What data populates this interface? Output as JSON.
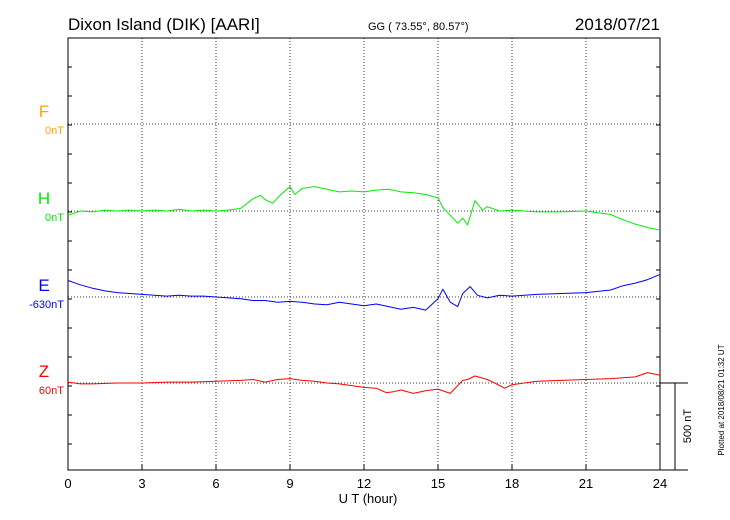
{
  "header": {
    "station": "Dixon Island (DIK)  [AARI]",
    "coords": "GG ( 73.55°,  80.57°)",
    "date": "2018/07/21"
  },
  "plotted_note": "Plotted at 2018/08/21 01:32 UT",
  "scale_label": "500 nT",
  "chart_data": {
    "type": "line",
    "xlabel": "U T (hour)",
    "ylabel": "",
    "xlim": [
      0,
      24
    ],
    "x_ticks": [
      0,
      3,
      6,
      9,
      12,
      15,
      18,
      21,
      24
    ],
    "grid": true,
    "scale_bar_nT": 500,
    "series": [
      {
        "name": "F",
        "offset_label": "0nT",
        "color": "#ffa500",
        "x": [],
        "y": []
      },
      {
        "name": "H",
        "offset_label": "0nT",
        "color": "#00ee00",
        "x": [
          0,
          0.5,
          1,
          1.5,
          2,
          2.5,
          3,
          3.5,
          4,
          4.5,
          5,
          5.5,
          6,
          6.5,
          7,
          7.5,
          7.8,
          8,
          8.3,
          8.6,
          9,
          9.2,
          9.5,
          10,
          10.5,
          11,
          11.5,
          12,
          12.5,
          13,
          13.5,
          14,
          14.5,
          15,
          15.2,
          15.5,
          15.8,
          16,
          16.2,
          16.5,
          16.8,
          17,
          17.5,
          18,
          19,
          20,
          21,
          22,
          22.5,
          23,
          23.5,
          24
        ],
        "y": [
          -25,
          0,
          -5,
          5,
          0,
          5,
          0,
          5,
          0,
          10,
          0,
          5,
          0,
          5,
          15,
          70,
          90,
          65,
          45,
          90,
          140,
          95,
          130,
          140,
          125,
          110,
          115,
          110,
          120,
          125,
          110,
          105,
          95,
          75,
          20,
          -25,
          -70,
          -40,
          -80,
          60,
          5,
          25,
          0,
          5,
          -5,
          -5,
          0,
          -20,
          -50,
          -75,
          -95,
          -110
        ]
      },
      {
        "name": "E",
        "offset_label": "-630nT",
        "color": "#0000ff",
        "x": [
          0,
          0.5,
          1,
          1.5,
          2,
          2.5,
          3,
          3.5,
          4,
          4.5,
          5,
          5.5,
          6,
          6.5,
          7,
          7.5,
          8,
          8.5,
          9,
          9.5,
          10,
          10.5,
          11,
          11.5,
          12,
          12.5,
          13,
          13.5,
          14,
          14.5,
          15,
          15.2,
          15.5,
          15.8,
          16,
          16.3,
          16.6,
          17,
          17.5,
          18,
          19,
          20,
          21,
          22,
          22.5,
          23,
          23.5,
          24
        ],
        "y": [
          95,
          70,
          50,
          35,
          25,
          20,
          15,
          10,
          5,
          10,
          5,
          5,
          0,
          -5,
          -10,
          -20,
          -20,
          -30,
          -25,
          -30,
          -40,
          -45,
          -30,
          -40,
          -50,
          -40,
          -55,
          -70,
          -60,
          -75,
          -10,
          45,
          -30,
          -55,
          20,
          60,
          10,
          -5,
          10,
          5,
          15,
          20,
          25,
          40,
          65,
          80,
          100,
          130
        ]
      },
      {
        "name": "Z",
        "offset_label": "60nT",
        "color": "#ff0000",
        "x": [
          0,
          0.5,
          1,
          2,
          3,
          4,
          5,
          6,
          7,
          7.5,
          8,
          8.5,
          9,
          9.5,
          10,
          10.5,
          11,
          11.5,
          12,
          12.5,
          12.9,
          13.2,
          13.5,
          14,
          14.5,
          15,
          15.5,
          16,
          16.2,
          16.5,
          17,
          17.3,
          17.7,
          18,
          19,
          20,
          21,
          22,
          23,
          23.5,
          24
        ],
        "y": [
          5,
          -5,
          -5,
          0,
          0,
          5,
          5,
          10,
          15,
          20,
          5,
          20,
          25,
          15,
          10,
          0,
          -5,
          -15,
          -25,
          -30,
          -55,
          -50,
          -40,
          -60,
          -45,
          -35,
          -60,
          15,
          20,
          40,
          20,
          0,
          -30,
          -10,
          10,
          15,
          20,
          25,
          35,
          60,
          45
        ]
      }
    ]
  }
}
